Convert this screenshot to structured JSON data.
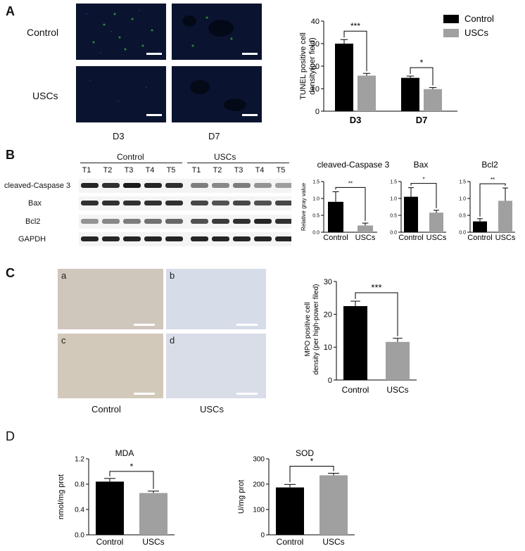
{
  "panels": {
    "A": "A",
    "B": "B",
    "C": "C",
    "D": "D"
  },
  "panelA": {
    "rows": [
      "Control",
      "USCs"
    ],
    "cols": [
      "D3",
      "D7"
    ]
  },
  "panelB": {
    "group_labels": [
      "Control",
      "USCs"
    ],
    "lanes": [
      "T1",
      "T2",
      "T3",
      "T4",
      "T5",
      "T1",
      "T2",
      "T3",
      "T4",
      "T5"
    ],
    "bands": [
      "cleaved-Caspase 3",
      "Bax",
      "Bcl2",
      "GAPDH"
    ]
  },
  "panelC": {
    "tags": [
      "a",
      "b",
      "c",
      "d"
    ],
    "cols": [
      "Control",
      "USCs"
    ]
  },
  "colors": {
    "control": "#000000",
    "uscs": "#a0a0a0"
  },
  "chart_data": [
    {
      "id": "tunel",
      "type": "bar",
      "categories": [
        "D3",
        "D7"
      ],
      "series": [
        {
          "name": "Control",
          "values": [
            30,
            14.8
          ],
          "errors": [
            1.8,
            0.8
          ]
        },
        {
          "name": "USCs",
          "values": [
            15.8,
            9.8
          ],
          "errors": [
            1.0,
            0.7
          ]
        }
      ],
      "ylabel": "TUNEL positive cell density(per field)",
      "ylim": [
        0,
        40
      ],
      "yticks": [
        0,
        10,
        20,
        30,
        40
      ],
      "legend": "top-right",
      "significance": [
        "***",
        "*"
      ]
    },
    {
      "id": "casp3",
      "type": "bar",
      "title": "cleaved-Caspase 3",
      "categories": [
        "Control",
        "USCs"
      ],
      "values": [
        0.9,
        0.2
      ],
      "errors": [
        0.3,
        0.07
      ],
      "ylabel": "Relative gray value",
      "ylim": [
        0,
        1.5
      ],
      "yticks": [
        "0.0",
        "0.5",
        "1.0",
        "1.5"
      ],
      "significance": "**"
    },
    {
      "id": "bax",
      "type": "bar",
      "title": "Bax",
      "categories": [
        "Control",
        "USCs"
      ],
      "values": [
        1.05,
        0.58
      ],
      "errors": [
        0.27,
        0.07
      ],
      "ylim": [
        0,
        1.5
      ],
      "yticks": [
        "0.0",
        "0.5",
        "1.0",
        "1.5"
      ],
      "significance": "*"
    },
    {
      "id": "bcl2",
      "type": "bar",
      "title": "Bcl2",
      "categories": [
        "Control",
        "USCs"
      ],
      "values": [
        0.32,
        0.93
      ],
      "errors": [
        0.08,
        0.38
      ],
      "ylim": [
        0,
        1.5
      ],
      "yticks": [
        "0.0",
        "0.5",
        "1.0",
        "1.5"
      ],
      "significance": "**"
    },
    {
      "id": "mpo",
      "type": "bar",
      "categories": [
        "Control",
        "USCs"
      ],
      "values": [
        22.5,
        11.6
      ],
      "errors": [
        1.5,
        1.1
      ],
      "ylabel": "MPO positive cell density (per high-power filed)",
      "ylim": [
        0,
        30
      ],
      "yticks": [
        0,
        10,
        20,
        30
      ],
      "significance": "***"
    },
    {
      "id": "mda",
      "type": "bar",
      "title": "MDA",
      "categories": [
        "Control",
        "USCs"
      ],
      "values": [
        0.84,
        0.66
      ],
      "errors": [
        0.05,
        0.03
      ],
      "ylabel": "nmol/mg prot",
      "ylim": [
        0,
        1.2
      ],
      "yticks": [
        "0.0",
        "0.4",
        "0.8",
        "1.2"
      ],
      "significance": "*"
    },
    {
      "id": "sod",
      "type": "bar",
      "title": "SOD",
      "categories": [
        "Control",
        "USCs"
      ],
      "values": [
        187,
        235
      ],
      "errors": [
        12,
        8
      ],
      "ylabel": "U/mg prot",
      "ylim": [
        0,
        300
      ],
      "yticks": [
        0,
        100,
        200,
        300
      ],
      "significance": "*"
    }
  ]
}
